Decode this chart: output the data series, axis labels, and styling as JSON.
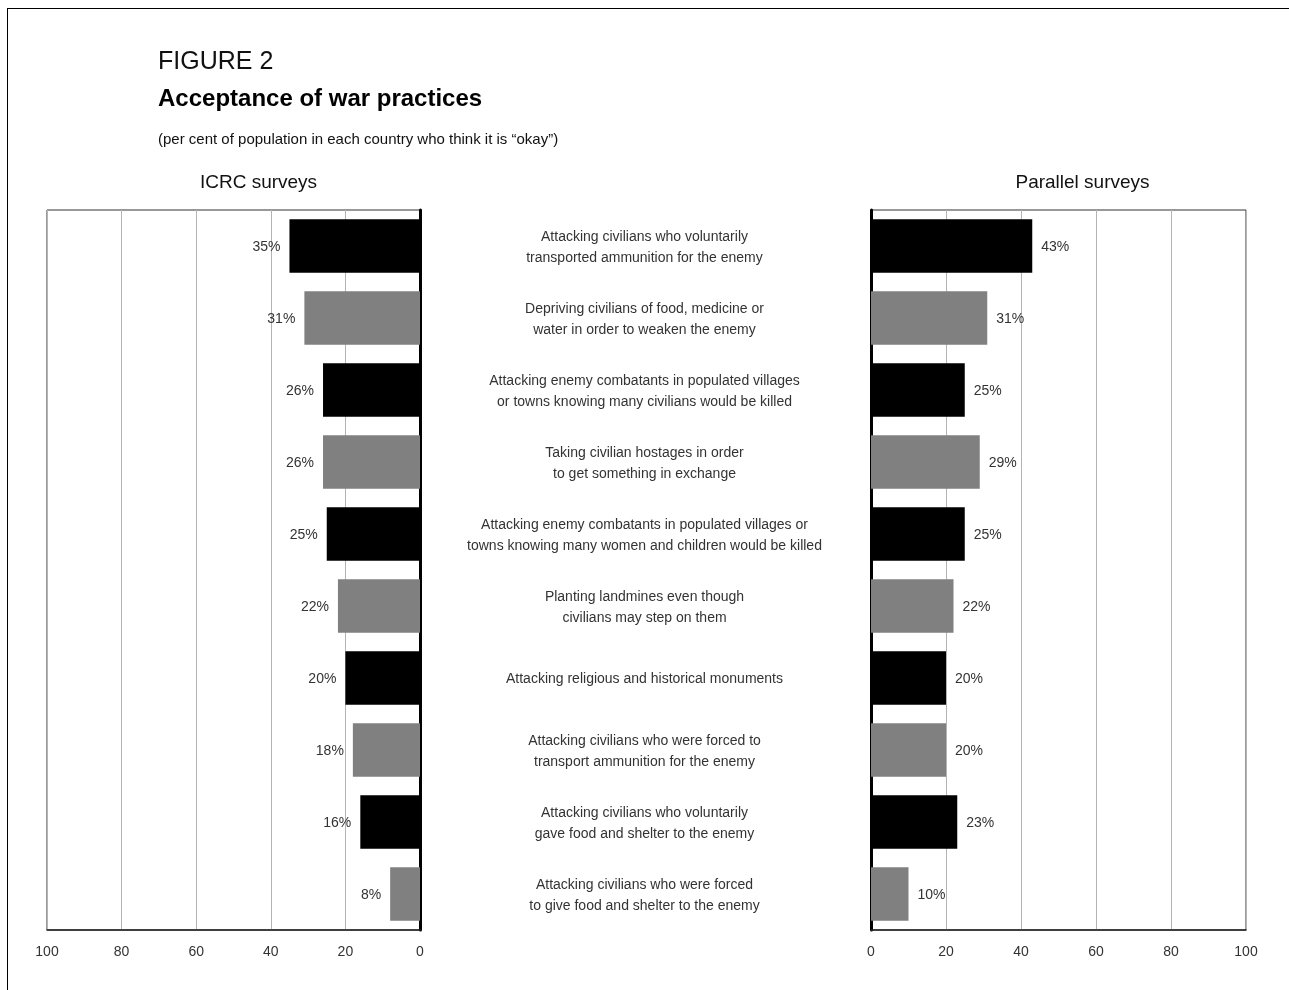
{
  "chart_data": [
    {
      "type": "bar",
      "orientation": "horizontal",
      "annotations": [
        "FIGURE 2"
      ],
      "title": "Acceptance of war practices",
      "subtitle": "(per cent of population in each country who think it is “okay”)",
      "xlabel": "ICRC surveys",
      "categories": [
        "Attacking civilians who voluntarily transported ammunition for the enemy",
        "Depriving civilians of food, medicine or water in order to weaken the enemy",
        "Attacking enemy combatants in populated villages or towns knowing many civilians would be killed",
        "Taking civilian hostages in order to get something in exchange",
        "Attacking enemy combatants in populated villages or towns knowing many women and children would be killed",
        "Planting landmines even though civilians may step on them",
        "Attacking religious and historical monuments",
        "Attacking civilians who were forced to transport ammunition for the enemy",
        "Attacking civilians who voluntarily gave food and shelter to the enemy",
        "Attacking civilians who were forced to give food and shelter to the enemy"
      ],
      "values": [
        35,
        31,
        26,
        26,
        25,
        22,
        20,
        18,
        16,
        8
      ],
      "value_labels": [
        "35%",
        "31%",
        "26%",
        "26%",
        "25%",
        "22%",
        "20%",
        "18%",
        "16%",
        "8%"
      ],
      "colors": [
        "#000000",
        "#808080",
        "#000000",
        "#808080",
        "#000000",
        "#808080",
        "#000000",
        "#808080",
        "#000000",
        "#808080"
      ],
      "xlim": [
        100,
        0
      ],
      "xticks": [
        100,
        80,
        60,
        40,
        20,
        0
      ],
      "grid": "x"
    },
    {
      "type": "bar",
      "orientation": "horizontal",
      "xlabel": "Parallel surveys",
      "categories": [
        "Attacking civilians who voluntarily transported ammunition for the enemy",
        "Depriving civilians of food, medicine or water in order to weaken the enemy",
        "Attacking enemy combatants in populated villages or towns knowing many civilians would be killed",
        "Taking civilian hostages in order to get something in exchange",
        "Attacking enemy combatants in populated villages or towns knowing many women and children would be killed",
        "Planting landmines even though civilians may step on them",
        "Attacking religious and historical monuments",
        "Attacking civilians who were forced to transport ammunition for the enemy",
        "Attacking civilians who voluntarily gave food and shelter to the enemy",
        "Attacking civilians who were forced to give food and shelter to the enemy"
      ],
      "values": [
        43,
        31,
        25,
        29,
        25,
        22,
        20,
        20,
        23,
        10
      ],
      "value_labels": [
        "43%",
        "31%",
        "25%",
        "29%",
        "25%",
        "22%",
        "20%",
        "20%",
        "23%",
        "10%"
      ],
      "colors": [
        "#000000",
        "#808080",
        "#000000",
        "#808080",
        "#000000",
        "#808080",
        "#000000",
        "#808080",
        "#000000",
        "#808080"
      ],
      "xlim": [
        0,
        100
      ],
      "xticks": [
        0,
        20,
        40,
        60,
        80,
        100
      ],
      "grid": "x",
      "tick_labels": "x"
    }
  ]
}
